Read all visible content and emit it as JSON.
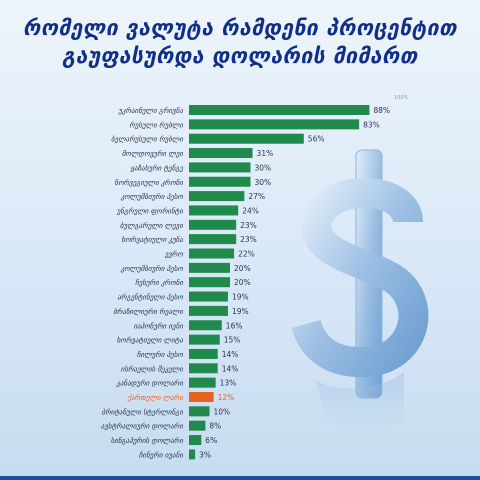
{
  "title": {
    "line1": "რომელი ვალუტა რამდენი პროცენტით",
    "line2": "გაუფასურდა დოლარის მიმართ"
  },
  "icons": {
    "background": "dollar-sign-icon"
  },
  "colors": {
    "bar": "#1f8a4c",
    "highlight": "#e8631e",
    "title": "#0f2f8a"
  },
  "chart_data": {
    "type": "bar",
    "orientation": "horizontal",
    "title": "რომელი ვალუტა რამდენი პროცენტით გაუფასურდა დოლარის მიმართ",
    "xlabel": "",
    "ylabel": "",
    "xlim": [
      0,
      100
    ],
    "axis_max_label": "100%",
    "grid": false,
    "highlight_category": "ქართული ლარი",
    "categories": [
      "უკრაინული გრივნა",
      "რუსული რუბლი",
      "ბელარუსული რუბლი",
      "მოლდოვური ლეი",
      "ყაზახური ტენგე",
      "ნორვეგიული კრონი",
      "კოლუმბიური პესო",
      "უნგრული ფორინტი",
      "ბულგარული ლევი",
      "ხორვატიული კუნა",
      "ევრო",
      "კოლუმბიური პესო",
      "ჩეხური კრონი",
      "არგენტინული პესო",
      "ბრაზილიური რეალი",
      "იაპონური იენი",
      "ხორვატიული ლიტა",
      "ჩილური პესო",
      "ისრაელის შეკელი",
      "კანადური დოლარი",
      "ქართული ლარი",
      "ბრიტანული სტერლინგი",
      "ავსტრალიური დოლარი",
      "სინგაპურის დოლარი",
      "ჩინური იუანი"
    ],
    "values": [
      88,
      83,
      56,
      31,
      30,
      30,
      27,
      24,
      23,
      23,
      22,
      20,
      20,
      19,
      19,
      16,
      15,
      14,
      14,
      13,
      12,
      10,
      8,
      6,
      3
    ],
    "value_labels": [
      "88%",
      "83%",
      "56%",
      "31%",
      "30%",
      "30%",
      "27%",
      "24%",
      "23%",
      "23%",
      "22%",
      "20%",
      "20%",
      "19%",
      "19%",
      "16%",
      "15%",
      "14%",
      "14%",
      "13%",
      "12%",
      "10%",
      "8%",
      "6%",
      "3%"
    ]
  }
}
